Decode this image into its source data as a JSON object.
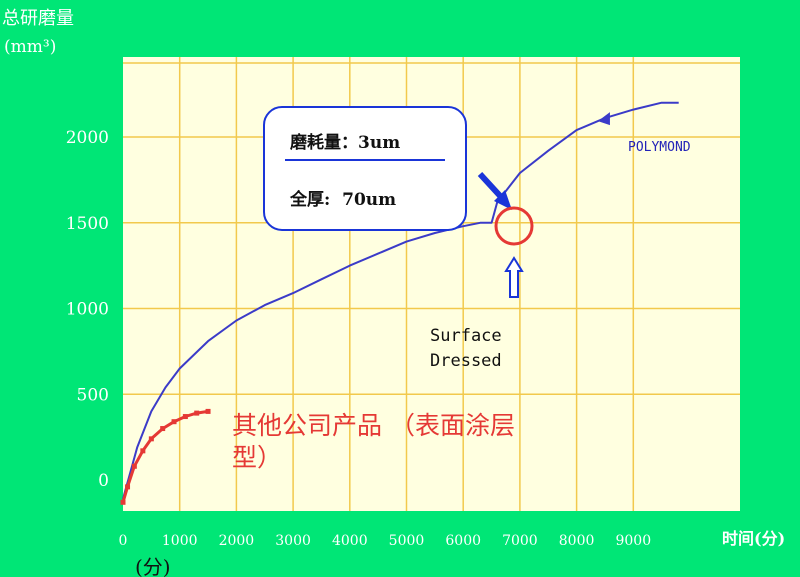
{
  "chart_data": {
    "type": "line",
    "ylabel_line1": "总研磨量",
    "ylabel_line2": "(mm³)",
    "xlabel": "时间(分)",
    "xlabel_extra": "(分)",
    "x_ticks": [
      "0",
      "1000",
      "2000",
      "3000",
      "4000",
      "5000",
      "6000",
      "7000",
      "8000",
      "9000"
    ],
    "y_ticks": [
      "0",
      "500",
      "1000",
      "1500",
      "2000"
    ],
    "xlim": [
      0,
      10000
    ],
    "ylim": [
      -150,
      2400
    ],
    "grid": true,
    "series": [
      {
        "name": "POLYMOND",
        "color": "#3B3BC8",
        "x": [
          0,
          100,
          250,
          500,
          750,
          1000,
          1500,
          2000,
          2500,
          3000,
          3500,
          4000,
          4500,
          5000,
          5500,
          6000,
          6300,
          6500,
          6600,
          7000,
          7500,
          8000,
          8500,
          9000,
          9500,
          9800
        ],
        "y": [
          -110,
          10,
          190,
          400,
          540,
          650,
          810,
          930,
          1020,
          1090,
          1170,
          1250,
          1320,
          1390,
          1440,
          1480,
          1500,
          1500,
          1620,
          1790,
          1920,
          2040,
          2110,
          2160,
          2200,
          2200
        ]
      },
      {
        "name": "其他公司产品 (表面涂层型)",
        "color": "#E53935",
        "x": [
          0,
          80,
          200,
          350,
          500,
          700,
          900,
          1100,
          1300,
          1500
        ],
        "y": [
          -130,
          -40,
          80,
          170,
          240,
          300,
          340,
          370,
          390,
          400
        ]
      }
    ],
    "annotations": {
      "box_line1": "磨耗量：3um",
      "box_line2": "全厚:  70um",
      "surface_line1": "Surface",
      "surface_line2": "Dressed",
      "polymond_label": "POLYMOND",
      "competitor_label": "其他公司产品 （表面涂层型）",
      "dressed_point": {
        "x": 6500,
        "y": 1500
      }
    },
    "colors": {
      "background": "#00E676",
      "plot_bg": "#FFFFE0",
      "grid": "#F2C94C",
      "box_border": "#1A35D8",
      "arrow_blue": "#1A35D8",
      "circle_red": "#E53935"
    }
  }
}
